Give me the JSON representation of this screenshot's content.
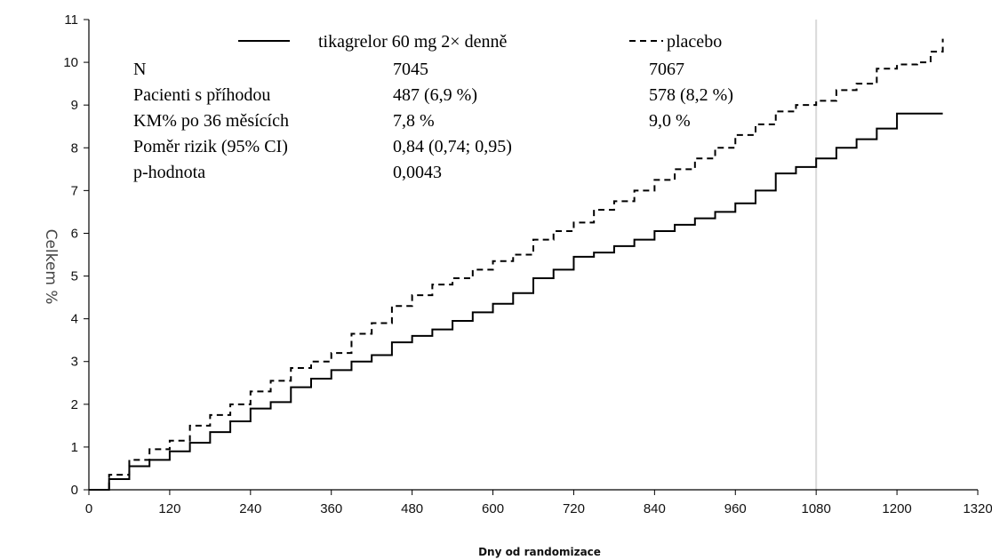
{
  "chart_data": {
    "type": "line",
    "xlabel": "Dny od randomizace",
    "ylabel": "Celkem %",
    "xlim": [
      0,
      1320
    ],
    "ylim": [
      0,
      11
    ],
    "xticks": [
      0,
      120,
      240,
      360,
      480,
      600,
      720,
      840,
      960,
      1080,
      1200,
      1320
    ],
    "yticks": [
      0,
      1,
      2,
      3,
      4,
      5,
      6,
      7,
      8,
      9,
      10,
      11
    ],
    "reference_line_x": 1080,
    "series": [
      {
        "name": "tikagrelor 60 mg 2× denně",
        "style": "solid",
        "x": [
          0,
          30,
          60,
          90,
          120,
          150,
          180,
          210,
          240,
          270,
          300,
          330,
          360,
          390,
          420,
          450,
          480,
          510,
          540,
          570,
          600,
          630,
          660,
          690,
          720,
          750,
          780,
          810,
          840,
          870,
          900,
          930,
          960,
          990,
          1020,
          1050,
          1080,
          1110,
          1140,
          1170,
          1200,
          1230,
          1268
        ],
        "values": [
          0,
          0.25,
          0.55,
          0.7,
          0.9,
          1.1,
          1.35,
          1.6,
          1.9,
          2.05,
          2.4,
          2.6,
          2.8,
          3.0,
          3.15,
          3.45,
          3.6,
          3.75,
          3.95,
          4.15,
          4.35,
          4.6,
          4.95,
          5.15,
          5.45,
          5.55,
          5.7,
          5.85,
          6.05,
          6.2,
          6.35,
          6.5,
          6.7,
          7.0,
          7.4,
          7.55,
          7.75,
          8.0,
          8.2,
          8.45,
          8.8,
          8.8,
          8.8
        ]
      },
      {
        "name": "placebo",
        "style": "dashed",
        "x": [
          0,
          30,
          60,
          90,
          120,
          150,
          180,
          210,
          240,
          270,
          300,
          330,
          360,
          390,
          420,
          450,
          480,
          510,
          540,
          570,
          600,
          630,
          660,
          690,
          720,
          750,
          780,
          810,
          840,
          870,
          900,
          930,
          960,
          990,
          1020,
          1050,
          1080,
          1110,
          1140,
          1170,
          1200,
          1230,
          1250,
          1268
        ],
        "values": [
          0,
          0.35,
          0.7,
          0.95,
          1.15,
          1.5,
          1.75,
          2.0,
          2.3,
          2.55,
          2.85,
          3.0,
          3.2,
          3.65,
          3.9,
          4.3,
          4.55,
          4.8,
          4.95,
          5.15,
          5.35,
          5.5,
          5.85,
          6.05,
          6.25,
          6.55,
          6.75,
          7.0,
          7.25,
          7.5,
          7.75,
          8.0,
          8.3,
          8.55,
          8.85,
          9.0,
          9.1,
          9.35,
          9.5,
          9.85,
          9.95,
          10.0,
          10.25,
          10.55
        ]
      }
    ],
    "stats_table": {
      "labels": [
        "N",
        "Pacienti s příhodou",
        "KM% po 36 měsících",
        "Poměr rizik (95% CI)",
        "p-hodnota"
      ],
      "col1": [
        "7045",
        "487 (6,9 %)",
        "7,8 %",
        "0,84 (0,74; 0,95)",
        "0,0043"
      ],
      "col2": [
        "7067",
        "578 (8,2 %)",
        "9,0 %",
        "",
        ""
      ]
    }
  }
}
